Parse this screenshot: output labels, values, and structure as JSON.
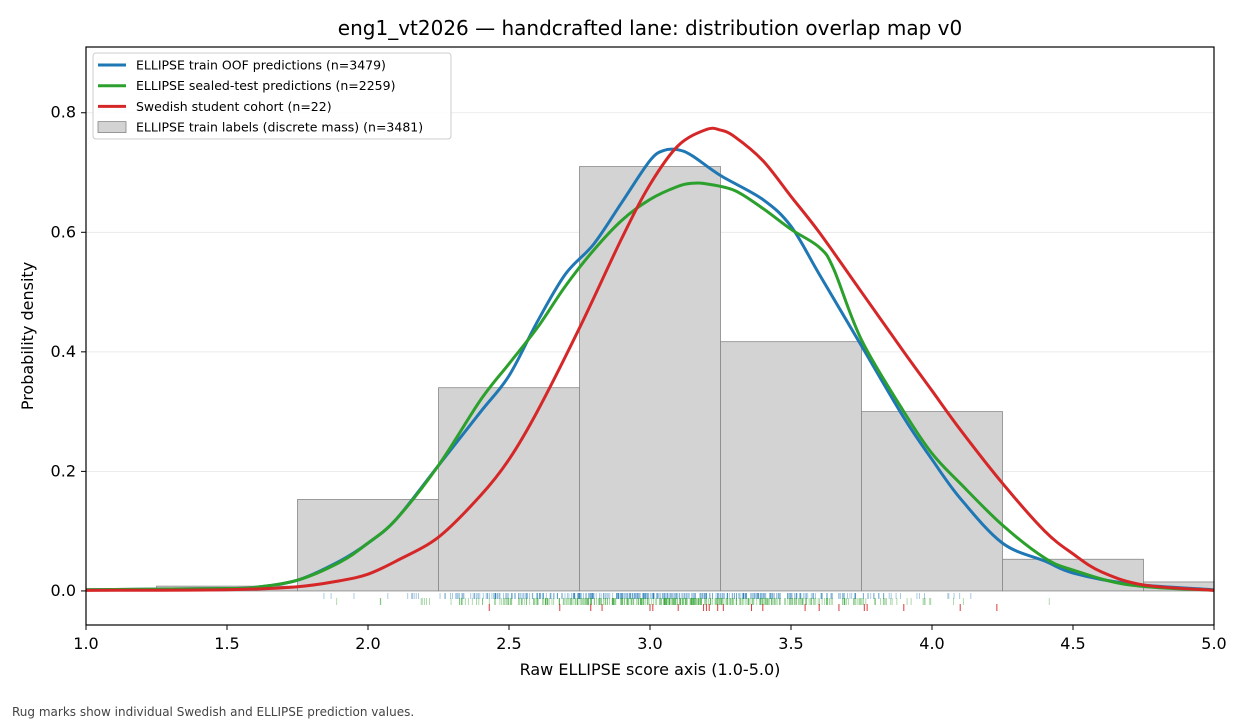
{
  "chart_data": {
    "type": "line",
    "title": "eng1_vt2026 — handcrafted lane: distribution overlap map v0",
    "xlabel": "Raw ELLIPSE score axis (1.0-5.0)",
    "ylabel": "Probability density",
    "xlim": [
      1.0,
      5.0
    ],
    "ylim": [
      -0.057,
      0.91
    ],
    "x_ticks": [
      "1.0",
      "1.5",
      "2.0",
      "2.5",
      "3.0",
      "3.5",
      "4.0",
      "4.5",
      "5.0"
    ],
    "y_ticks": [
      "0.0",
      "0.2",
      "0.4",
      "0.6",
      "0.8"
    ],
    "grid": "horizontal",
    "legend_position": "top-left",
    "histogram": {
      "name": "ELLIPSE train labels (discrete mass) (n=3481)",
      "color": "#d3d3d3",
      "bins": [
        {
          "x0": 1.25,
          "x1": 1.75,
          "value": 0.008
        },
        {
          "x0": 1.75,
          "x1": 2.25,
          "value": 0.153
        },
        {
          "x0": 2.25,
          "x1": 2.75,
          "value": 0.34
        },
        {
          "x0": 2.75,
          "x1": 3.25,
          "value": 0.71
        },
        {
          "x0": 3.25,
          "x1": 3.75,
          "value": 0.417
        },
        {
          "x0": 3.75,
          "x1": 4.25,
          "value": 0.3
        },
        {
          "x0": 4.25,
          "x1": 4.75,
          "value": 0.053
        },
        {
          "x0": 4.75,
          "x1": 5.25,
          "value": 0.015
        }
      ]
    },
    "series": [
      {
        "name": "ELLIPSE train OOF predictions (n=3479)",
        "color": "#1f77b4",
        "x": [
          1.0,
          1.5,
          1.6,
          1.75,
          1.9,
          2.0,
          2.1,
          2.25,
          2.4,
          2.5,
          2.6,
          2.7,
          2.8,
          2.9,
          3.0,
          3.05,
          3.1,
          3.15,
          3.25,
          3.4,
          3.5,
          3.6,
          3.75,
          3.9,
          4.0,
          4.1,
          4.25,
          4.4,
          4.5,
          4.7,
          5.0
        ],
        "y": [
          0.002,
          0.004,
          0.006,
          0.018,
          0.05,
          0.08,
          0.12,
          0.21,
          0.3,
          0.36,
          0.45,
          0.53,
          0.58,
          0.65,
          0.72,
          0.737,
          0.738,
          0.728,
          0.695,
          0.655,
          0.61,
          0.53,
          0.41,
          0.29,
          0.22,
          0.155,
          0.08,
          0.05,
          0.03,
          0.012,
          0.002
        ]
      },
      {
        "name": "ELLIPSE sealed-test predictions (n=2259)",
        "color": "#2ca02c",
        "x": [
          1.0,
          1.5,
          1.6,
          1.75,
          1.9,
          2.0,
          2.1,
          2.25,
          2.4,
          2.5,
          2.6,
          2.7,
          2.8,
          2.9,
          3.0,
          3.1,
          3.15,
          3.2,
          3.3,
          3.4,
          3.5,
          3.6,
          3.65,
          3.75,
          3.9,
          4.0,
          4.1,
          4.25,
          4.4,
          4.5,
          4.7,
          5.0
        ],
        "y": [
          0.002,
          0.004,
          0.006,
          0.018,
          0.048,
          0.08,
          0.12,
          0.21,
          0.32,
          0.38,
          0.44,
          0.51,
          0.57,
          0.62,
          0.655,
          0.677,
          0.682,
          0.681,
          0.67,
          0.64,
          0.605,
          0.575,
          0.54,
          0.42,
          0.3,
          0.23,
          0.18,
          0.11,
          0.055,
          0.035,
          0.01,
          0.001
        ]
      },
      {
        "name": "Swedish student cohort (n=22)",
        "color": "#d62728",
        "x": [
          1.0,
          1.5,
          1.75,
          1.9,
          2.0,
          2.1,
          2.25,
          2.4,
          2.5,
          2.6,
          2.75,
          2.9,
          3.0,
          3.1,
          3.2,
          3.25,
          3.3,
          3.4,
          3.5,
          3.6,
          3.75,
          3.9,
          4.0,
          4.1,
          4.25,
          4.4,
          4.5,
          4.6,
          4.75,
          5.0
        ],
        "y": [
          0.001,
          0.002,
          0.007,
          0.017,
          0.028,
          0.05,
          0.09,
          0.16,
          0.22,
          0.3,
          0.44,
          0.59,
          0.68,
          0.745,
          0.772,
          0.771,
          0.76,
          0.72,
          0.66,
          0.6,
          0.5,
          0.4,
          0.335,
          0.27,
          0.18,
          0.1,
          0.062,
          0.032,
          0.01,
          0.001
        ]
      }
    ],
    "rugs": [
      {
        "series": "ELLIPSE train OOF predictions (n=3479)",
        "color": "#1f77b4",
        "range": [
          1.7,
          4.6
        ],
        "peak": 3.1
      },
      {
        "series": "ELLIPSE sealed-test predictions (n=2259)",
        "color": "#2ca02c",
        "range": [
          1.7,
          4.5
        ],
        "peak": 3.1
      },
      {
        "series": "Swedish student cohort (n=22)",
        "color": "#d62728",
        "values": [
          2.43,
          2.68,
          2.79,
          2.83,
          3.0,
          3.01,
          3.1,
          3.19,
          3.2,
          3.21,
          3.24,
          3.26,
          3.36,
          3.4,
          3.55,
          3.6,
          3.67,
          3.76,
          3.77,
          3.9,
          4.1,
          4.23
        ]
      }
    ]
  },
  "footnote": "Rug marks show individual Swedish and ELLIPSE prediction values."
}
